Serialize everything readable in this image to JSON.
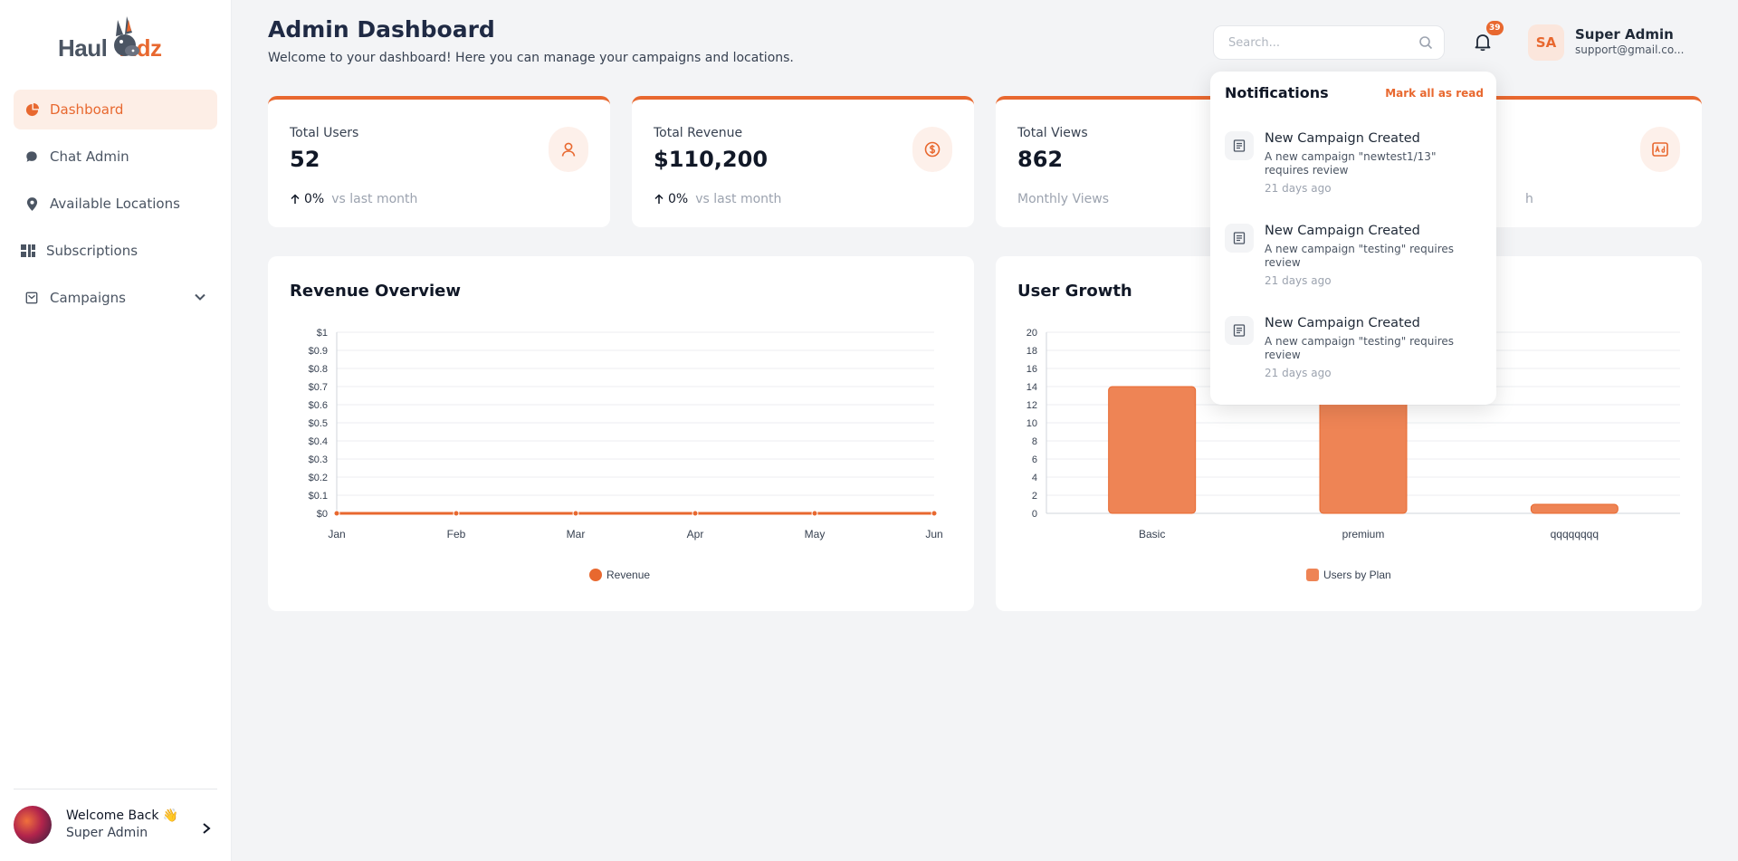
{
  "brand": {
    "part1": "Haul",
    "part2": "Adz"
  },
  "sidebar": {
    "items": [
      {
        "label": "Dashboard",
        "icon": "pie-chart-icon",
        "active": true
      },
      {
        "label": "Chat Admin",
        "icon": "chat-icon"
      },
      {
        "label": "Available Locations",
        "icon": "map-pin-icon"
      },
      {
        "label": "Subscriptions",
        "icon": "grid-icon"
      },
      {
        "label": "Campaigns",
        "icon": "campaign-icon",
        "expandable": true
      }
    ],
    "footer": {
      "greeting": "Welcome Back 👋",
      "name": "Super Admin"
    }
  },
  "header": {
    "title": "Admin Dashboard",
    "subtitle": "Welcome to your dashboard! Here you can manage your campaigns and locations.",
    "search_placeholder": "Search...",
    "notification_count": "39",
    "user": {
      "initials": "SA",
      "name": "Super Admin",
      "email": "support@gmail.co..."
    }
  },
  "stats": [
    {
      "label": "Total Users",
      "value": "52",
      "trend": "0%",
      "trend_note": "vs last month",
      "icon": "user-icon"
    },
    {
      "label": "Total Revenue",
      "value": "$110,200",
      "trend": "0%",
      "trend_note": "vs last month",
      "icon": "dollar-icon"
    },
    {
      "label": "Total Views",
      "value": "862",
      "note": "Monthly Views",
      "icon": "eye-icon"
    },
    {
      "note": "h",
      "icon": "ad-icon"
    }
  ],
  "notifications": {
    "title": "Notifications",
    "mark_all": "Mark all as read",
    "items": [
      {
        "title": "New Campaign Created",
        "desc": "A new campaign \"newtest1/13\" requires review",
        "time": "21 days ago"
      },
      {
        "title": "New Campaign Created",
        "desc": "A new campaign \"testing\" requires review",
        "time": "21 days ago"
      },
      {
        "title": "New Campaign Created",
        "desc": "A new campaign \"testing\" requires review",
        "time": "21 days ago"
      }
    ]
  },
  "colors": {
    "accent": "#e8682f",
    "accent_light": "#fdeee6",
    "bar": "#ee8455"
  },
  "chart_data": [
    {
      "type": "line",
      "title": "Revenue Overview",
      "categories": [
        "Jan",
        "Feb",
        "Mar",
        "Apr",
        "May",
        "Jun"
      ],
      "series": [
        {
          "name": "Revenue",
          "values": [
            0,
            0,
            0,
            0,
            0,
            0
          ]
        }
      ],
      "yticks": [
        "$0",
        "$0.1",
        "$0.2",
        "$0.3",
        "$0.4",
        "$0.5",
        "$0.6",
        "$0.7",
        "$0.8",
        "$0.9",
        "$1"
      ],
      "ylim": [
        0,
        1
      ],
      "grid": true,
      "legend": "bottom"
    },
    {
      "type": "bar",
      "title": "User Growth",
      "categories": [
        "Basic",
        "premium",
        "qqqqqqqq"
      ],
      "series": [
        {
          "name": "Users by Plan",
          "values": [
            14,
            16,
            1
          ]
        }
      ],
      "yticks": [
        "0",
        "2",
        "4",
        "6",
        "8",
        "10",
        "12",
        "14",
        "16",
        "18",
        "20"
      ],
      "ylim": [
        0,
        20
      ],
      "grid": true,
      "legend": "bottom"
    }
  ]
}
